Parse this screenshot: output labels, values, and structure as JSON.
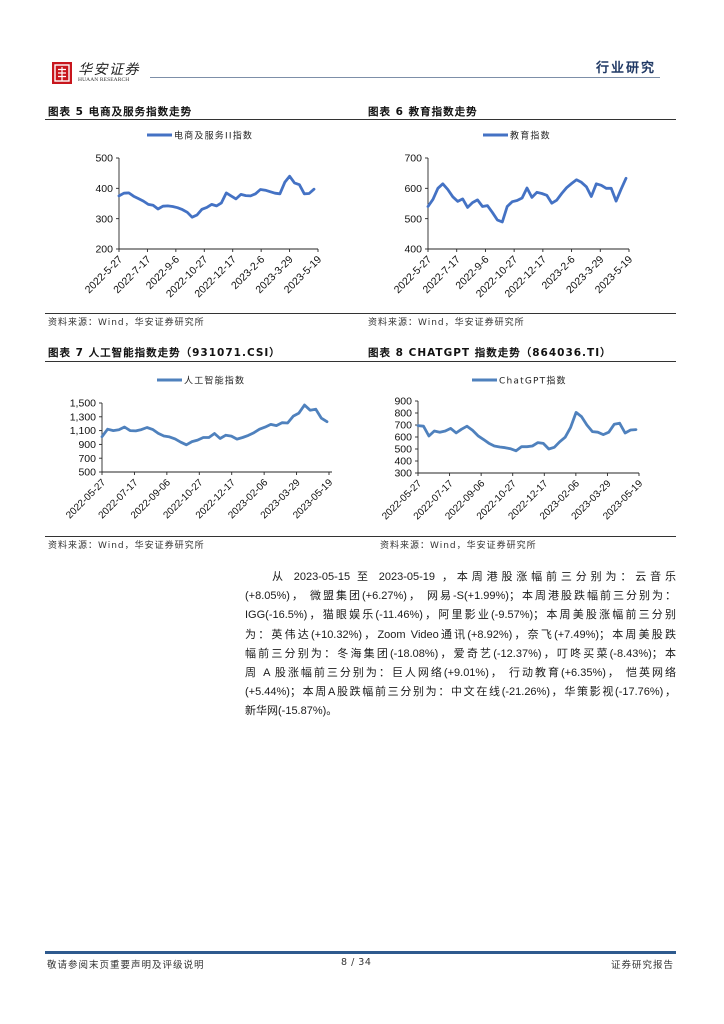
{
  "header": {
    "brand_cn": "华安证券",
    "brand_en": "HUAAN RESEARCH",
    "section": "行业研究"
  },
  "figures": [
    {
      "title": "图表 5 电商及服务指数走势",
      "source": "资料来源：Wind，华安证券研究所"
    },
    {
      "title": "图表 6 教育指数走势",
      "source": "资料来源：Wind，华安证券研究所"
    },
    {
      "title": "图表 7 人工智能指数走势（931071.CSI）",
      "source": "资料来源：Wind，华安证券研究所"
    },
    {
      "title": "图表 8 CHATGPT 指数走势（864036.TI）",
      "source": "资料来源：Wind，华安证券研究所"
    }
  ],
  "chart_data": [
    {
      "type": "line",
      "title": "图表 5 电商及服务指数走势",
      "xlabel": "",
      "ylabel": "",
      "x_start": "2022-05-27",
      "x_end": "2023-05-19",
      "xticks": [
        "2022-5-27",
        "2022-7-17",
        "2022-9-6",
        "2022-10-27",
        "2022-12-17",
        "2023-2-6",
        "2023-3-29",
        "2023-5-19"
      ],
      "yticks": [
        200,
        300,
        400,
        500
      ],
      "ytick_labels": [
        "200",
        "300",
        "400",
        "500"
      ],
      "ylim": [
        200,
        500
      ],
      "grid": false,
      "legend_position": "top",
      "color": "#4472c4",
      "series": [
        {
          "name": "电商及服务II指数",
          "values": [
            375,
            384,
            385,
            374,
            366,
            358,
            347,
            344,
            332,
            341,
            342,
            340,
            336,
            330,
            321,
            305,
            312,
            331,
            337,
            347,
            342,
            352,
            385,
            375,
            365,
            380,
            376,
            375,
            382,
            396,
            394,
            389,
            384,
            382,
            420,
            440,
            418,
            412,
            382,
            383,
            397
          ]
        }
      ]
    },
    {
      "type": "line",
      "title": "图表 6 教育指数走势",
      "xlabel": "",
      "ylabel": "",
      "x_start": "2022-05-27",
      "x_end": "2023-05-19",
      "xticks": [
        "2022-5-27",
        "2022-7-17",
        "2022-9-6",
        "2022-10-27",
        "2022-12-17",
        "2023-2-6",
        "2023-3-29",
        "2023-5-19"
      ],
      "yticks": [
        400,
        500,
        600,
        700
      ],
      "ytick_labels": [
        "400",
        "500",
        "600",
        "700"
      ],
      "ylim": [
        400,
        700
      ],
      "grid": false,
      "legend_position": "top",
      "color": "#4472c4",
      "series": [
        {
          "name": "教育指数",
          "values": [
            540,
            564,
            600,
            615,
            596,
            572,
            557,
            565,
            537,
            553,
            562,
            540,
            543,
            521,
            496,
            489,
            540,
            556,
            560,
            568,
            601,
            570,
            587,
            583,
            577,
            551,
            561,
            583,
            602,
            616,
            628,
            620,
            605,
            573,
            615,
            610,
            600,
            600,
            558,
            597,
            633
          ]
        }
      ]
    },
    {
      "type": "line",
      "title": "图表 7 人工智能指数走势（931071.CSI）",
      "xlabel": "",
      "ylabel": "",
      "x_start": "2022-05-27",
      "x_end": "2023-05-19",
      "xticks": [
        "2022-05-27",
        "2022-07-17",
        "2022-09-06",
        "2022-10-27",
        "2022-12-17",
        "2023-02-06",
        "2023-03-29",
        "2023-05-19"
      ],
      "yticks": [
        500,
        700,
        900,
        1100,
        1300,
        1500
      ],
      "ytick_labels": [
        "500",
        "700",
        "900",
        "1,100",
        "1,300",
        "1,500"
      ],
      "ylim": [
        500,
        1500
      ],
      "grid": false,
      "legend_position": "top",
      "color": "#4f81bd",
      "series": [
        {
          "name": "人工智能指数",
          "values": [
            1012,
            1120,
            1100,
            1113,
            1152,
            1100,
            1095,
            1115,
            1145,
            1117,
            1060,
            1022,
            1009,
            980,
            932,
            894,
            940,
            962,
            1000,
            1000,
            1058,
            985,
            1034,
            1021,
            977,
            1000,
            1030,
            1070,
            1120,
            1150,
            1190,
            1172,
            1215,
            1210,
            1310,
            1353,
            1471,
            1395,
            1410,
            1280,
            1229
          ]
        }
      ]
    },
    {
      "type": "line",
      "title": "图表 8 CHATGPT 指数走势（864036.TI）",
      "xlabel": "",
      "ylabel": "",
      "x_start": "2022-05-27",
      "x_end": "2023-05-19",
      "xticks": [
        "2022-05-27",
        "2022-07-17",
        "2022-09-06",
        "2022-10-27",
        "2022-12-17",
        "2023-02-06",
        "2023-03-29",
        "2023-05-19"
      ],
      "yticks": [
        300,
        400,
        500,
        600,
        700,
        800,
        900
      ],
      "ytick_labels": [
        "300",
        "400",
        "500",
        "600",
        "700",
        "800",
        "900"
      ],
      "ylim": [
        300,
        900
      ],
      "grid": false,
      "legend_position": "top",
      "color": "#4f81bd",
      "series": [
        {
          "name": "ChatGPT指数",
          "values": [
            695,
            690,
            608,
            650,
            640,
            650,
            672,
            634,
            665,
            690,
            656,
            610,
            580,
            548,
            525,
            517,
            511,
            502,
            485,
            520,
            519,
            525,
            553,
            547,
            500,
            514,
            560,
            598,
            680,
            805,
            770,
            700,
            645,
            640,
            620,
            640,
            706,
            715,
            633,
            658,
            662
          ]
        }
      ]
    }
  ],
  "body": {
    "lines": [
      "从 2023-05-15 至 2023-05-19 ，本周港股涨幅前三分别为：云音乐",
      "(+8.05%)， 微盟集团(+6.27%)， 网易-S(+1.99%)；本周港股跌幅前三分别为：",
      "IGG(-16.5%)，猫眼娱乐(-11.46%)，阿里影业(-9.57%)；本周美股涨幅前三分别",
      "为：英伟达(+10.32%)，Zoom Video通讯(+8.92%)，奈飞(+7.49%)；本周美股跌",
      "幅前三分别为：冬海集团(-18.08%)，爱奇艺(-12.37%)，叮咚买菜(-8.43%)；本",
      "周 A 股涨幅前三分别为：巨人网络(+9.01%)， 行动教育(+6.35%)， 恺英网络",
      "(+5.44%)；本周A股跌幅前三分别为：中文在线(-21.26%)，华策影视(-17.76%)，",
      "新华网(-15.87%)。"
    ]
  },
  "footer": {
    "disclaimer": "敬请参阅末页重要声明及评级说明",
    "page": "8 / 34",
    "doc_type": "证券研究报告"
  }
}
